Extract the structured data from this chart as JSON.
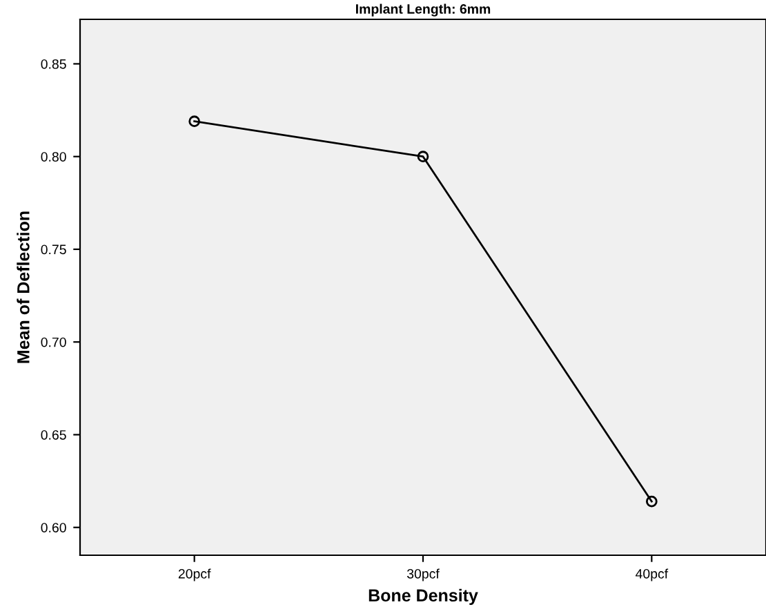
{
  "chart_data": {
    "type": "line",
    "title": "Implant Length: 6mm",
    "xlabel": "Bone Density",
    "ylabel": "Mean of Deflection",
    "categories": [
      "20pcf",
      "30pcf",
      "40pcf"
    ],
    "series": [
      {
        "color": "#000000",
        "values": [
          0.819,
          0.8,
          0.614
        ]
      }
    ],
    "ylim": [
      0.585,
      0.874
    ],
    "yticks": [
      {
        "value": 0.6,
        "label": "0.60"
      },
      {
        "value": 0.65,
        "label": "0.65"
      },
      {
        "value": 0.7,
        "label": "0.70"
      },
      {
        "value": 0.75,
        "label": "0.75"
      },
      {
        "value": 0.8,
        "label": "0.80"
      },
      {
        "value": 0.85,
        "label": "0.85"
      }
    ],
    "marker": "circle",
    "line_style": "solid",
    "grid": false,
    "legend": false
  }
}
